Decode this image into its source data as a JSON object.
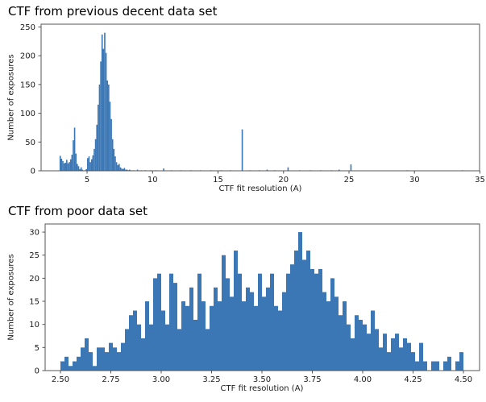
{
  "figure": {
    "background": "#ffffff",
    "bar_color": "#3b77b4",
    "axis_color": "#555555",
    "text_color": "#1a1a1a"
  },
  "chart_data": [
    {
      "type": "bar",
      "subtype": "histogram",
      "title": "CTF from previous decent data set",
      "xlabel": "CTF fit resolution (A)",
      "ylabel": "Number of exposures",
      "xlim": [
        1.49,
        34.97
      ],
      "ylim": [
        0,
        254.9
      ],
      "grid": false,
      "legend": null,
      "bin_width": 0.1,
      "xticks": [
        [
          5,
          "5"
        ],
        [
          10,
          "10"
        ],
        [
          15,
          "15"
        ],
        [
          20,
          "20"
        ],
        [
          25,
          "25"
        ],
        [
          30,
          "30"
        ],
        [
          35,
          "35"
        ]
      ],
      "yticks": [
        [
          0,
          "0"
        ],
        [
          50,
          "50"
        ],
        [
          100,
          "100"
        ],
        [
          150,
          "150"
        ],
        [
          200,
          "200"
        ],
        [
          250,
          "250"
        ]
      ],
      "bars": [
        [
          2.95,
          26
        ],
        [
          3.05,
          21
        ],
        [
          3.15,
          17
        ],
        [
          3.25,
          13
        ],
        [
          3.35,
          14
        ],
        [
          3.45,
          19
        ],
        [
          3.55,
          13
        ],
        [
          3.65,
          15
        ],
        [
          3.75,
          20
        ],
        [
          3.85,
          28
        ],
        [
          3.95,
          53
        ],
        [
          4.05,
          75
        ],
        [
          4.15,
          30
        ],
        [
          4.25,
          12
        ],
        [
          4.35,
          8
        ],
        [
          4.45,
          3
        ],
        [
          4.55,
          6
        ],
        [
          4.65,
          2
        ],
        [
          4.85,
          1
        ],
        [
          4.95,
          3
        ],
        [
          5.05,
          22
        ],
        [
          5.15,
          25
        ],
        [
          5.25,
          15
        ],
        [
          5.35,
          20
        ],
        [
          5.45,
          27
        ],
        [
          5.55,
          38
        ],
        [
          5.65,
          55
        ],
        [
          5.75,
          80
        ],
        [
          5.85,
          115
        ],
        [
          5.95,
          150
        ],
        [
          6.05,
          190
        ],
        [
          6.15,
          237
        ],
        [
          6.25,
          212
        ],
        [
          6.35,
          240
        ],
        [
          6.45,
          205
        ],
        [
          6.55,
          157
        ],
        [
          6.65,
          150
        ],
        [
          6.75,
          120
        ],
        [
          6.85,
          90
        ],
        [
          6.95,
          55
        ],
        [
          7.05,
          38
        ],
        [
          7.15,
          25
        ],
        [
          7.25,
          15
        ],
        [
          7.35,
          10
        ],
        [
          7.45,
          12
        ],
        [
          7.55,
          6
        ],
        [
          7.65,
          4
        ],
        [
          7.75,
          3
        ],
        [
          7.85,
          5
        ],
        [
          7.95,
          2
        ],
        [
          8.05,
          2
        ],
        [
          8.15,
          1
        ],
        [
          8.25,
          2
        ],
        [
          8.35,
          1
        ],
        [
          8.55,
          1
        ],
        [
          8.85,
          2
        ],
        [
          9.15,
          1
        ],
        [
          9.45,
          1
        ],
        [
          9.85,
          1
        ],
        [
          10.25,
          1
        ],
        [
          10.85,
          4
        ],
        [
          11.45,
          1
        ],
        [
          12.15,
          1
        ],
        [
          12.95,
          1
        ],
        [
          13.65,
          1
        ],
        [
          14.45,
          1
        ],
        [
          15.25,
          1
        ],
        [
          15.95,
          1
        ],
        [
          16.85,
          72
        ],
        [
          17.45,
          1
        ],
        [
          18.15,
          1
        ],
        [
          18.75,
          2
        ],
        [
          19.35,
          1
        ],
        [
          20.35,
          6
        ],
        [
          21.25,
          1
        ],
        [
          22.05,
          1
        ],
        [
          22.85,
          1
        ],
        [
          23.65,
          1
        ],
        [
          24.25,
          2
        ],
        [
          25.15,
          11
        ],
        [
          29.45,
          1
        ],
        [
          33.65,
          1
        ]
      ]
    },
    {
      "type": "bar",
      "subtype": "histogram",
      "title": "CTF from poor data set",
      "xlabel": "CTF fit resolution (A)",
      "ylabel": "Number of exposures",
      "xlim": [
        2.424,
        4.58
      ],
      "ylim": [
        0,
        31.76
      ],
      "grid": false,
      "legend": null,
      "bin_width": 0.02,
      "xticks": [
        [
          2.5,
          "2.50"
        ],
        [
          2.75,
          "2.75"
        ],
        [
          3.0,
          "3.00"
        ],
        [
          3.25,
          "3.25"
        ],
        [
          3.5,
          "3.50"
        ],
        [
          3.75,
          "3.75"
        ],
        [
          4.0,
          "4.00"
        ],
        [
          4.25,
          "4.25"
        ],
        [
          4.5,
          "4.50"
        ]
      ],
      "yticks": [
        [
          0,
          "0"
        ],
        [
          5,
          "5"
        ],
        [
          10,
          "10"
        ],
        [
          15,
          "15"
        ],
        [
          20,
          "20"
        ],
        [
          25,
          "25"
        ],
        [
          30,
          "30"
        ]
      ],
      "bars": [
        [
          2.51,
          2
        ],
        [
          2.53,
          3
        ],
        [
          2.55,
          1
        ],
        [
          2.57,
          2
        ],
        [
          2.59,
          3
        ],
        [
          2.61,
          5
        ],
        [
          2.63,
          7
        ],
        [
          2.65,
          4
        ],
        [
          2.67,
          1
        ],
        [
          2.69,
          5
        ],
        [
          2.71,
          5
        ],
        [
          2.73,
          4
        ],
        [
          2.75,
          6
        ],
        [
          2.77,
          5
        ],
        [
          2.79,
          4
        ],
        [
          2.81,
          6
        ],
        [
          2.83,
          9
        ],
        [
          2.85,
          12
        ],
        [
          2.87,
          13
        ],
        [
          2.89,
          10
        ],
        [
          2.91,
          7
        ],
        [
          2.93,
          15
        ],
        [
          2.95,
          10
        ],
        [
          2.97,
          20
        ],
        [
          2.99,
          21
        ],
        [
          3.01,
          13
        ],
        [
          3.03,
          10
        ],
        [
          3.05,
          21
        ],
        [
          3.07,
          19
        ],
        [
          3.09,
          9
        ],
        [
          3.11,
          15
        ],
        [
          3.13,
          14
        ],
        [
          3.15,
          18
        ],
        [
          3.17,
          11
        ],
        [
          3.19,
          21
        ],
        [
          3.21,
          15
        ],
        [
          3.23,
          9
        ],
        [
          3.25,
          14
        ],
        [
          3.27,
          18
        ],
        [
          3.29,
          15
        ],
        [
          3.31,
          25
        ],
        [
          3.33,
          20
        ],
        [
          3.35,
          16
        ],
        [
          3.37,
          26
        ],
        [
          3.39,
          21
        ],
        [
          3.41,
          15
        ],
        [
          3.43,
          18
        ],
        [
          3.45,
          17
        ],
        [
          3.47,
          14
        ],
        [
          3.49,
          21
        ],
        [
          3.51,
          16
        ],
        [
          3.53,
          18
        ],
        [
          3.55,
          21
        ],
        [
          3.57,
          14
        ],
        [
          3.59,
          13
        ],
        [
          3.61,
          17
        ],
        [
          3.63,
          21
        ],
        [
          3.65,
          23
        ],
        [
          3.67,
          26
        ],
        [
          3.69,
          30
        ],
        [
          3.71,
          24
        ],
        [
          3.73,
          26
        ],
        [
          3.75,
          22
        ],
        [
          3.77,
          21
        ],
        [
          3.79,
          22
        ],
        [
          3.81,
          17
        ],
        [
          3.83,
          15
        ],
        [
          3.85,
          20
        ],
        [
          3.87,
          16
        ],
        [
          3.89,
          12
        ],
        [
          3.91,
          15
        ],
        [
          3.93,
          10
        ],
        [
          3.95,
          7
        ],
        [
          3.97,
          12
        ],
        [
          3.99,
          11
        ],
        [
          4.01,
          10
        ],
        [
          4.03,
          8
        ],
        [
          4.05,
          13
        ],
        [
          4.07,
          9
        ],
        [
          4.09,
          5
        ],
        [
          4.11,
          8
        ],
        [
          4.13,
          4
        ],
        [
          4.15,
          7
        ],
        [
          4.17,
          8
        ],
        [
          4.19,
          5
        ],
        [
          4.21,
          7
        ],
        [
          4.23,
          6
        ],
        [
          4.25,
          4
        ],
        [
          4.27,
          2
        ],
        [
          4.29,
          6
        ],
        [
          4.31,
          2
        ],
        [
          4.35,
          2
        ],
        [
          4.37,
          2
        ],
        [
          4.41,
          2
        ],
        [
          4.43,
          3
        ],
        [
          4.47,
          2
        ],
        [
          4.49,
          4
        ]
      ]
    }
  ]
}
